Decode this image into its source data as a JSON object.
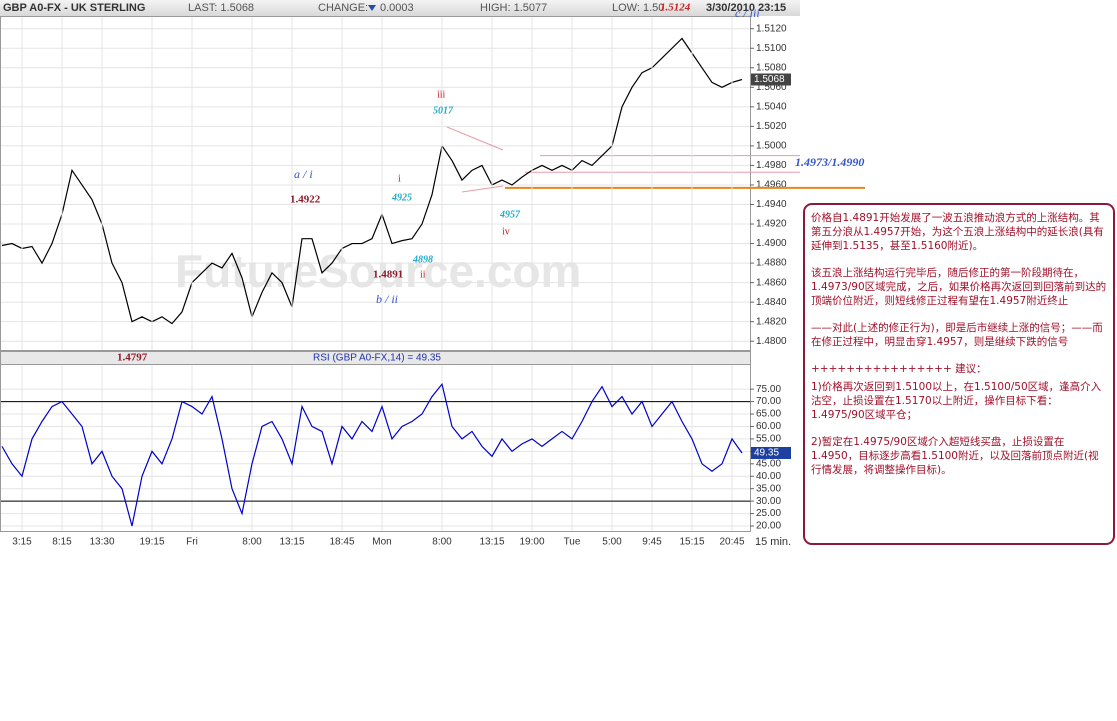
{
  "header": {
    "symbol": "GBP A0-FX - UK STERLING",
    "last": "LAST: 1.5068",
    "change_label": "CHANGE:",
    "change": "0.0003",
    "high": "HIGH: 1.5077",
    "low": "LOW: 1.50",
    "low_overlay": "1.5124",
    "date": "3/30/2010 23:15",
    "interval": "15 min.",
    "watermark": "FutureSource.com"
  },
  "chart_data": [
    {
      "type": "line",
      "color": "#000000",
      "ylim": [
        1.4791,
        1.5132
      ],
      "grid": true,
      "last_label": "1.5068",
      "yticks": [
        {
          "value": 1.48,
          "label": "1.4800"
        },
        {
          "value": 1.482,
          "label": "1.4820"
        },
        {
          "value": 1.484,
          "label": "1.4840"
        },
        {
          "value": 1.486,
          "label": "1.4860"
        },
        {
          "value": 1.488,
          "label": "1.4880"
        },
        {
          "value": 1.49,
          "label": "1.4900"
        },
        {
          "value": 1.492,
          "label": "1.4920"
        },
        {
          "value": 1.494,
          "label": "1.4940"
        },
        {
          "value": 1.496,
          "label": "1.4960"
        },
        {
          "value": 1.498,
          "label": "1.4980"
        },
        {
          "value": 1.5,
          "label": "1.5000"
        },
        {
          "value": 1.502,
          "label": "1.5020"
        },
        {
          "value": 1.504,
          "label": "1.5040"
        },
        {
          "value": 1.506,
          "label": "1.5060"
        },
        {
          "value": 1.508,
          "label": "1.5080"
        },
        {
          "value": 1.51,
          "label": "1.5100"
        },
        {
          "value": 1.512,
          "label": "1.5120"
        }
      ],
      "values": [
        1.4898,
        1.49,
        1.4895,
        1.4897,
        1.488,
        1.49,
        1.493,
        1.4975,
        1.496,
        1.4945,
        1.492,
        1.488,
        1.486,
        1.482,
        1.4825,
        1.482,
        1.4825,
        1.4818,
        1.483,
        1.486,
        1.487,
        1.488,
        1.4875,
        1.489,
        1.4865,
        1.4825,
        1.485,
        1.487,
        1.486,
        1.4835,
        1.4905,
        1.4905,
        1.487,
        1.488,
        1.4895,
        1.49,
        1.49,
        1.4905,
        1.493,
        1.49,
        1.4903,
        1.4905,
        1.492,
        1.495,
        1.5,
        1.4985,
        1.4965,
        1.4975,
        1.498,
        1.496,
        1.4965,
        1.496,
        1.4968,
        1.4975,
        1.498,
        1.4975,
        1.498,
        1.4975,
        1.4985,
        1.498,
        1.499,
        1.5,
        1.504,
        1.506,
        1.5075,
        1.508,
        1.509,
        1.51,
        1.511,
        1.5095,
        1.508,
        1.5065,
        1.506,
        1.5065,
        1.5068
      ],
      "reference_lines": [
        {
          "value": 1.4957,
          "color": "#e08a1e"
        },
        {
          "value": 1.4973,
          "color": "#e89aa8"
        },
        {
          "value": 1.499,
          "color": "#e89aa8"
        }
      ],
      "annotations": [
        "a / i",
        "1.4922",
        "i",
        "4925",
        "1.4891",
        "ii",
        "4898",
        "b / ii",
        "iii",
        "5017",
        "4957",
        "iv",
        "c / iii",
        "1.4797",
        "1.4973/1.4990"
      ]
    },
    {
      "type": "line",
      "title": "RSI (GBP A0-FX,14) = 49.35",
      "color": "#0000cc",
      "ylim": [
        18,
        84.7
      ],
      "grid": true,
      "last_label": "49.35",
      "levels": [
        70,
        30
      ],
      "yticks": [
        {
          "value": 20,
          "label": "20.00"
        },
        {
          "value": 25,
          "label": "25.00"
        },
        {
          "value": 30,
          "label": "30.00"
        },
        {
          "value": 35,
          "label": "35.00"
        },
        {
          "value": 40,
          "label": "40.00"
        },
        {
          "value": 45,
          "label": "45.00"
        },
        {
          "value": 50,
          "label": "50.00"
        },
        {
          "value": 55,
          "label": "55.00"
        },
        {
          "value": 60,
          "label": "60.00"
        },
        {
          "value": 65,
          "label": "65.00"
        },
        {
          "value": 70,
          "label": "70.00"
        },
        {
          "value": 75,
          "label": "75.00"
        }
      ],
      "categories": [
        null,
        null,
        "3:15",
        null,
        null,
        null,
        "8:15",
        null,
        null,
        null,
        "13:30",
        null,
        null,
        null,
        null,
        "19:15",
        null,
        null,
        null,
        "Fri",
        null,
        null,
        null,
        null,
        null,
        "8:00",
        null,
        null,
        null,
        "13:15",
        null,
        null,
        null,
        null,
        "18:45",
        null,
        null,
        null,
        "Mon",
        null,
        null,
        null,
        null,
        null,
        "8:00",
        null,
        null,
        null,
        null,
        "13:15",
        null,
        null,
        null,
        "19:00",
        null,
        null,
        null,
        "Tue",
        null,
        null,
        null,
        "5:00",
        null,
        null,
        null,
        "9:45",
        null,
        null,
        null,
        "15:15",
        null,
        null,
        null,
        "20:45",
        null
      ],
      "values": [
        52,
        45,
        40,
        55,
        62,
        68,
        70,
        65,
        60,
        45,
        50,
        40,
        35,
        20,
        40,
        50,
        45,
        55,
        70,
        68,
        65,
        72,
        55,
        35,
        25,
        45,
        60,
        62,
        55,
        45,
        68,
        60,
        58,
        45,
        60,
        55,
        62,
        58,
        68,
        55,
        60,
        62,
        65,
        72,
        77,
        60,
        55,
        58,
        52,
        48,
        55,
        50,
        53,
        55,
        52,
        55,
        58,
        55,
        62,
        70,
        76,
        68,
        72,
        65,
        70,
        60,
        65,
        70,
        62,
        55,
        45,
        42,
        45,
        55,
        49.35
      ]
    }
  ],
  "note": [
    "价格自1.4891开始发展了一波五浪推动浪方式的上涨结构。其第五分浪从1.4957开始，为这个五浪上涨结构中的延长浪(具有延伸到1.5135，甚至1.5160附近)。",
    "该五浪上涨结构运行完毕后，随后修正的第一阶段期待在，1.4973/90区域完成，之后，如果价格再次返回到回落前到达的顶端价位附近，则短线修正过程有望在1.4957附近终止",
    "——对此(上述的修正行为)，即是后市继续上涨的信号；——而在修正过程中，明显击穿1.4957，则是继续下跌的信号",
    "++++++++++++++++ 建议：",
    "1)价格再次返回到1.5100以上，在1.5100/50区域，逢高介入沽空，止损设置在1.5170以上附近，操作目标下看：1.4975/90区域平仓；",
    "2)暂定在1.4975/90区域介入超短线买盘，止损设置在1.4950，目标逐步高看1.5100附近，以及回落前顶点附近(视行情发展，将调整操作目标)。"
  ]
}
